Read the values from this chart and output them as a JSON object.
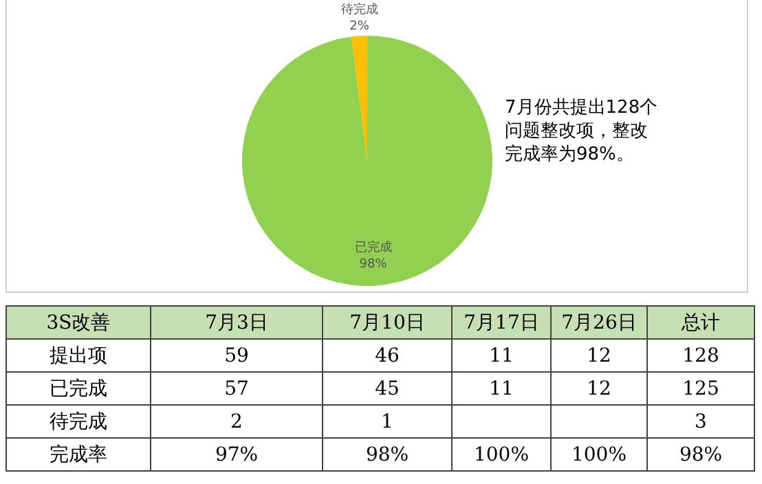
{
  "chart_data": [
    {
      "type": "pie",
      "categories": [
        "已完成",
        "待完成"
      ],
      "values": [
        98,
        2
      ],
      "colors": [
        "#92d050",
        "#ffc000"
      ],
      "value_labels": [
        "98%",
        "2%"
      ],
      "legend": false,
      "annotations": [
        "7月份共提出128个问题整改项，整改完成率为98%。"
      ]
    },
    {
      "type": "other",
      "title": "3S改善",
      "categories": [
        "7月3日",
        "7月10日",
        "7月17日",
        "7月26日",
        "总计"
      ],
      "y_categories": [
        "提出项",
        "已完成",
        "待完成",
        "完成率"
      ],
      "cell_labels": [
        [
          "59",
          "46",
          "11",
          "12",
          "128"
        ],
        [
          "57",
          "45",
          "11",
          "12",
          "125"
        ],
        [
          "2",
          "1",
          null,
          null,
          "3"
        ],
        [
          "97%",
          "98%",
          "100%",
          "100%",
          "98%"
        ]
      ]
    }
  ]
}
